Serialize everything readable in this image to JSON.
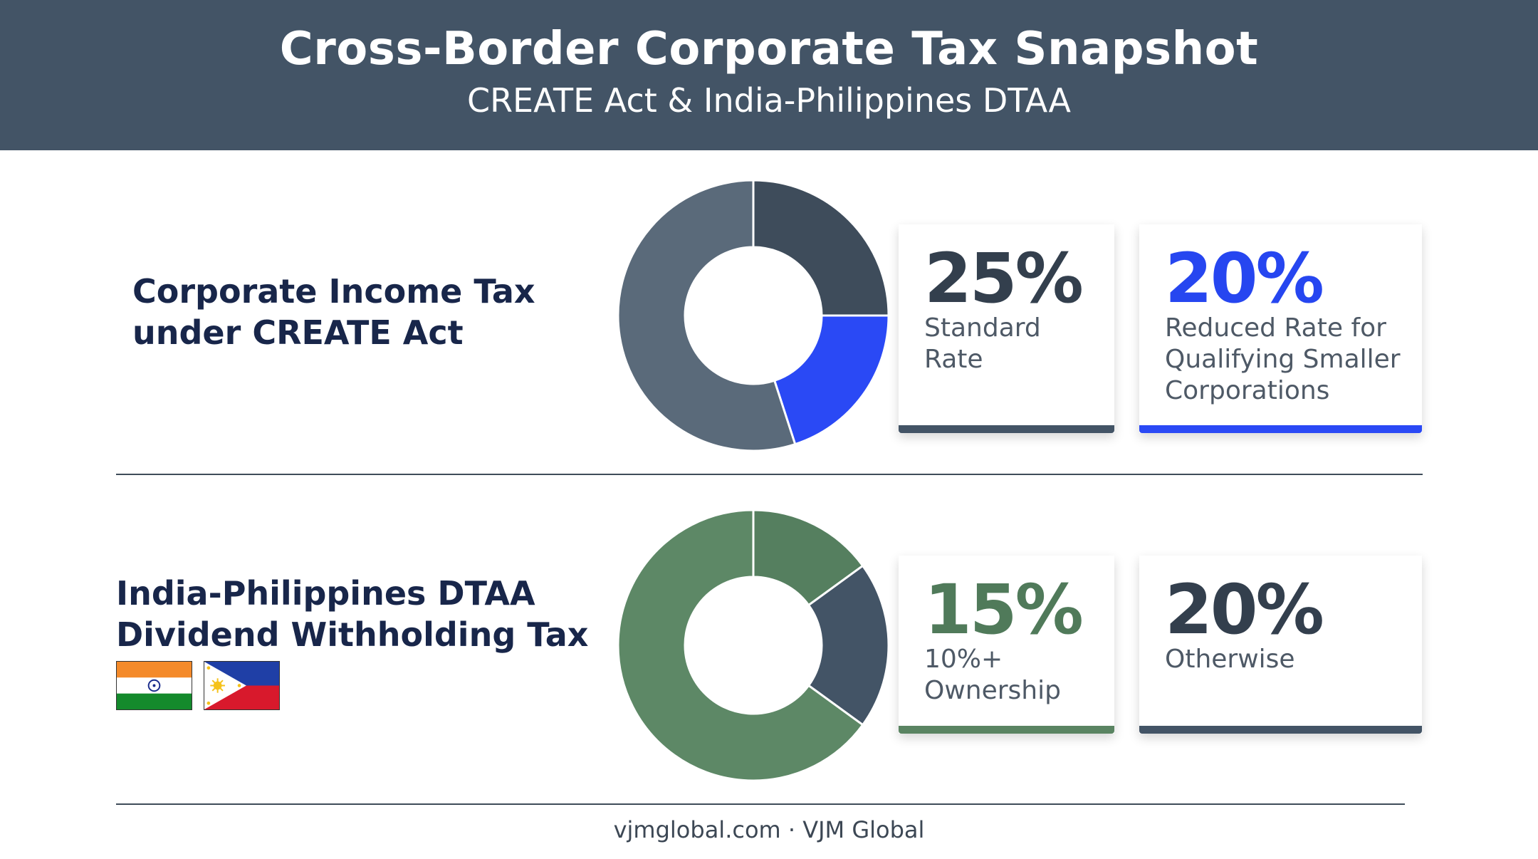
{
  "header": {
    "title": "Cross-Border Corporate Tax Snapshot",
    "subtitle": "CREATE Act & India-Philippines DTAA"
  },
  "sections": [
    {
      "label_lines": [
        "Corporate Income Tax",
        "under CREATE Act"
      ],
      "cards": [
        {
          "value": "25%",
          "desc_lines": [
            "Standard",
            "Rate"
          ],
          "value_color": "#333f4d",
          "bar_color": "#435466"
        },
        {
          "value": "20%",
          "desc_lines": [
            "Reduced Rate for",
            "Qualifying Smaller",
            "Corporations"
          ],
          "value_color": "#2646f0",
          "bar_color": "#2a49f5"
        }
      ]
    },
    {
      "label_lines": [
        "India-Philippines DTAA",
        "Dividend Withholding Tax"
      ],
      "cards": [
        {
          "value": "15%",
          "desc_lines": [
            "10%+",
            "Ownership"
          ],
          "value_color": "#507a5a",
          "bar_color": "#5a8462"
        },
        {
          "value": "20%",
          "desc_lines": [
            "Otherwise"
          ],
          "value_color": "#333f4d",
          "bar_color": "#435466"
        }
      ]
    }
  ],
  "flags": {
    "india": "india-flag",
    "philippines": "philippines-flag"
  },
  "footer": "vjmglobal.com · VJM Global",
  "chart_data": [
    {
      "type": "pie",
      "categories": [
        "Standard Rate",
        "Reduced Rate for Qualifying Smaller Corporations",
        "Remainder"
      ],
      "values": [
        25,
        20,
        55
      ],
      "colors": [
        "#3e4c5b",
        "#2a49f5",
        "#5a6a7a"
      ]
    },
    {
      "type": "pie",
      "categories": [
        "10%+ Ownership",
        "Otherwise",
        "Remainder"
      ],
      "values": [
        15,
        20,
        65
      ],
      "colors": [
        "#557f5f",
        "#435466",
        "#5d8866"
      ]
    }
  ]
}
